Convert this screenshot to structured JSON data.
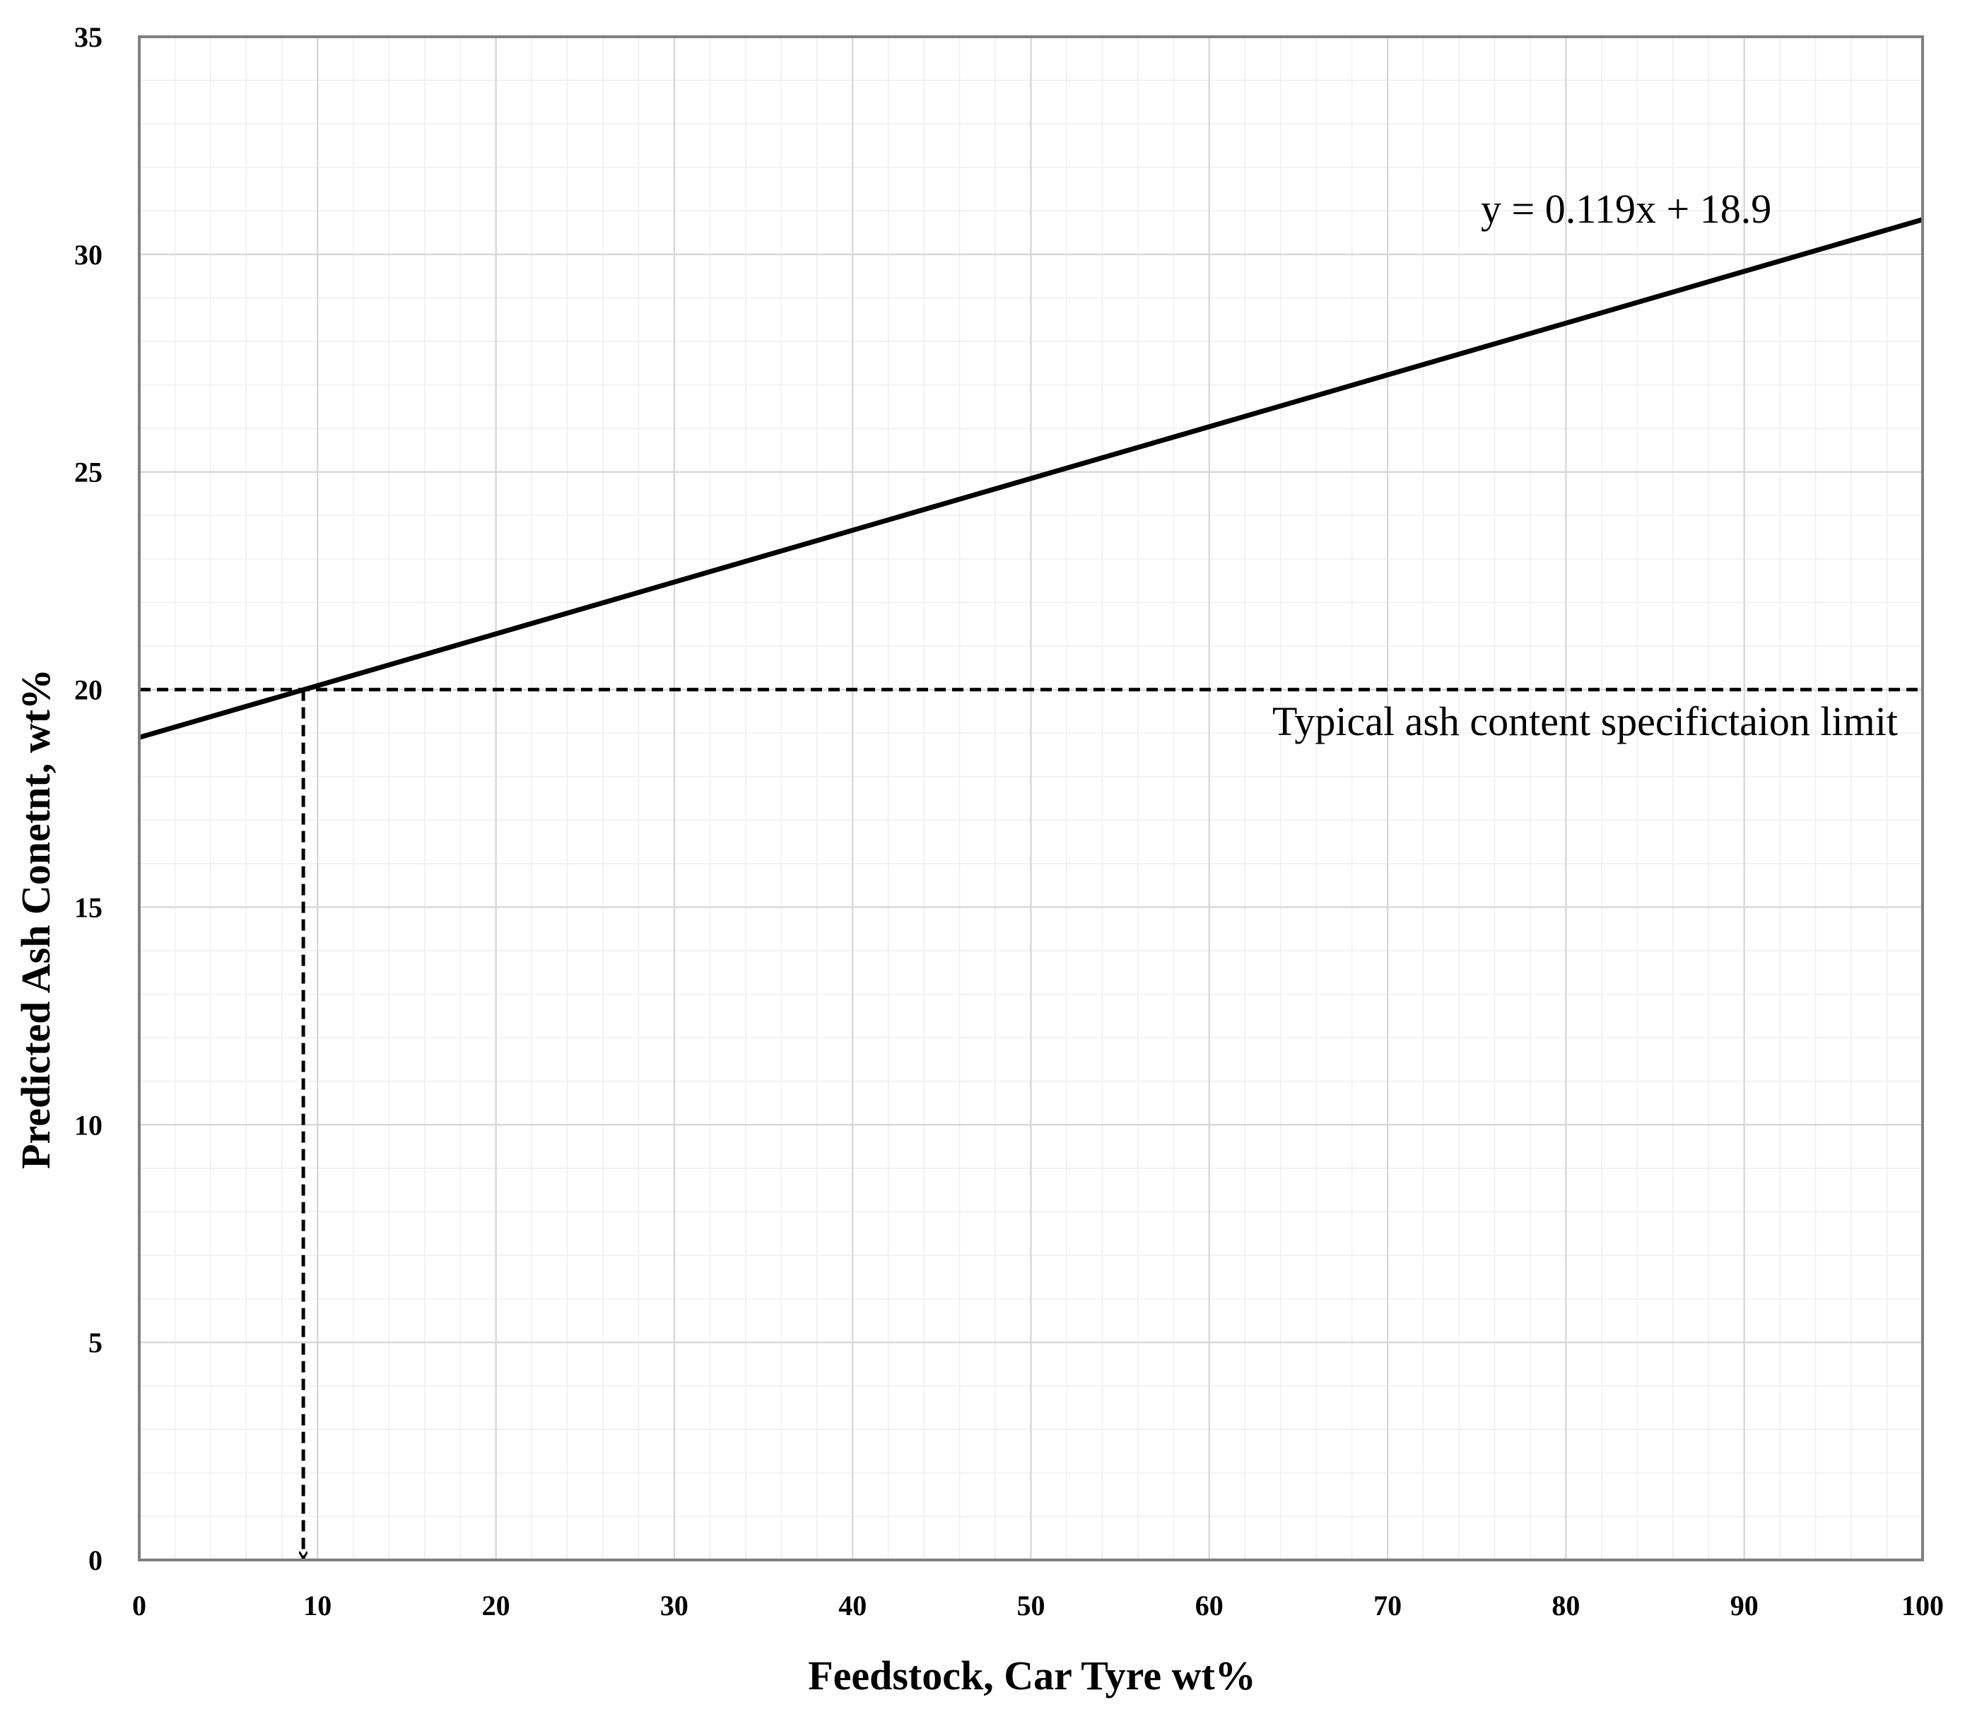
{
  "chart_data": {
    "type": "line",
    "title": "",
    "xlabel": "Feedstock, Car Tyre wt%",
    "ylabel": "Predicted Ash Conetnt, wt%",
    "xlim": [
      0,
      100
    ],
    "ylim": [
      0,
      35
    ],
    "x_ticks": [
      0,
      10,
      20,
      30,
      40,
      50,
      60,
      70,
      80,
      90,
      100
    ],
    "y_ticks": [
      0,
      5,
      10,
      15,
      20,
      25,
      30,
      35
    ],
    "x_tick_labels": [
      "0",
      "10",
      "20",
      "30",
      "40",
      "50",
      "60",
      "70",
      "80",
      "90",
      "100"
    ],
    "y_tick_labels": [
      "0",
      "5",
      "10",
      "15",
      "20",
      "25",
      "30",
      "35"
    ],
    "grid": {
      "major": true,
      "minor": true
    },
    "series": [
      {
        "x": [
          0,
          100
        ],
        "y": [
          18.9,
          30.8
        ],
        "style": "solid",
        "color": "#000000"
      }
    ],
    "reference_lines": [
      {
        "orientation": "horizontal",
        "y": 20,
        "style": "dashed",
        "color": "#000000"
      },
      {
        "orientation": "vertical",
        "x": 9.2,
        "y_from": 20,
        "y_to": 0,
        "style": "dashed-arrow",
        "color": "#000000"
      }
    ],
    "annotations": {
      "equation": "y = 0.119x + 18.9",
      "limit_label": "Typical ash content specifictaion limit"
    }
  },
  "colors": {
    "line": "#000000",
    "major_grid": "#d9d9d9",
    "minor_grid": "#efefef",
    "plot_border": "#7f7f7f"
  }
}
